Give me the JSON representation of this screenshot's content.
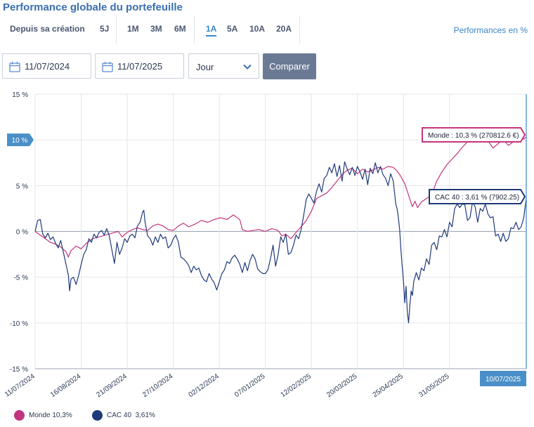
{
  "title": "Performance globale du portefeuille",
  "periods": [
    {
      "label": "Depuis sa création",
      "active": false
    },
    {
      "label": "5J",
      "active": false
    },
    {
      "label": "1M",
      "active": false
    },
    {
      "label": "3M",
      "active": false
    },
    {
      "label": "6M",
      "active": false
    },
    {
      "label": "1A",
      "active": true
    },
    {
      "label": "5A",
      "active": false
    },
    {
      "label": "10A",
      "active": false
    },
    {
      "label": "20A",
      "active": false
    }
  ],
  "perf_mode": "Performances en %",
  "controls": {
    "date_from": "11/07/2024",
    "date_to": "11/07/2025",
    "granularity": "Jour",
    "compare_label": "Comparer"
  },
  "colors": {
    "monde": "#c2357e",
    "cac40": "#1f3a7a",
    "accent": "#3a86c8",
    "button": "#6b7a94"
  },
  "chart_data": {
    "type": "line",
    "x_ticks": [
      "11/07/2024",
      "16/08/2024",
      "21/09/2024",
      "27/10/2024",
      "02/12/2024",
      "07/01/2025",
      "12/02/2025",
      "20/03/2025",
      "25/04/2025",
      "31/05/2025"
    ],
    "y_ticks": [
      "15 %",
      "10 %",
      "5 %",
      "0 %",
      "-5 %",
      "-10 %",
      "-15 %"
    ],
    "ylim": [
      -15,
      15
    ],
    "x_range": [
      "11/07/2024",
      "10/07/2025"
    ],
    "crosshair": {
      "y_label": "10 %",
      "x_label": "10/07/2025"
    },
    "grid": true,
    "series": [
      {
        "name": "Monde",
        "legend_value": "10,3%",
        "tooltip": "Monde : 10,3 % (270812.6 €)",
        "points": [
          [
            0,
            0
          ],
          [
            4,
            -0.4
          ],
          [
            8,
            -0.8
          ],
          [
            12,
            -1.2
          ],
          [
            16,
            -1.4
          ],
          [
            20,
            -1.7
          ],
          [
            24,
            -2.2
          ],
          [
            26,
            -2.8
          ],
          [
            28,
            -2.1
          ],
          [
            32,
            -1.6
          ],
          [
            36,
            -1.9
          ],
          [
            40,
            -1.3
          ],
          [
            45,
            -0.8
          ],
          [
            50,
            -0.6
          ],
          [
            55,
            -0.4
          ],
          [
            60,
            -0.2
          ],
          [
            65,
            0
          ],
          [
            68,
            -0.6
          ],
          [
            72,
            -0.1
          ],
          [
            76,
            0.2
          ],
          [
            80,
            0.4
          ],
          [
            84,
            0.2
          ],
          [
            88,
            0.1
          ],
          [
            92,
            0.6
          ],
          [
            96,
            0.8
          ],
          [
            100,
            0.6
          ],
          [
            104,
            0.2
          ],
          [
            108,
            0.1
          ],
          [
            112,
            0.6
          ],
          [
            116,
            0.9
          ],
          [
            120,
            0.5
          ],
          [
            125,
            0.8
          ],
          [
            130,
            1.2
          ],
          [
            135,
            1.0
          ],
          [
            140,
            1.3
          ],
          [
            145,
            1.5
          ],
          [
            150,
            1.3
          ],
          [
            155,
            1.8
          ],
          [
            160,
            1.3
          ],
          [
            162,
            0.2
          ],
          [
            166,
            0
          ],
          [
            170,
            0.1
          ],
          [
            175,
            0.2
          ],
          [
            180,
            0
          ],
          [
            185,
            0.3
          ],
          [
            190,
            0.1
          ],
          [
            193,
            -0.5
          ],
          [
            196,
            -0.3
          ],
          [
            200,
            -0.8
          ],
          [
            204,
            -0.1
          ],
          [
            208,
            0.5
          ],
          [
            212,
            1.2
          ],
          [
            216,
            2.2
          ],
          [
            220,
            3.6
          ],
          [
            224,
            3.9
          ],
          [
            228,
            4.2
          ],
          [
            232,
            4.8
          ],
          [
            236,
            5.5
          ],
          [
            240,
            6.2
          ],
          [
            244,
            6.7
          ],
          [
            248,
            6.9
          ],
          [
            252,
            6.3
          ],
          [
            256,
            6.8
          ],
          [
            260,
            6.5
          ],
          [
            264,
            6.7
          ],
          [
            268,
            7.0
          ],
          [
            272,
            6.8
          ],
          [
            276,
            7.1
          ],
          [
            280,
            7.0
          ],
          [
            283,
            6.6
          ],
          [
            286,
            6.0
          ],
          [
            289,
            5.2
          ],
          [
            291,
            4.4
          ],
          [
            293,
            3.5
          ],
          [
            295,
            2.7
          ],
          [
            297,
            3.3
          ],
          [
            299,
            2.6
          ],
          [
            302,
            3.2
          ],
          [
            306,
            3.6
          ],
          [
            310,
            4.0
          ],
          [
            314,
            5.5
          ],
          [
            318,
            6.5
          ],
          [
            322,
            7.3
          ],
          [
            326,
            7.9
          ],
          [
            330,
            8.5
          ],
          [
            334,
            9.2
          ],
          [
            338,
            9.8
          ],
          [
            342,
            10.2
          ],
          [
            346,
            10.4
          ],
          [
            350,
            10.6
          ],
          [
            354,
            9.9
          ],
          [
            358,
            9.1
          ],
          [
            362,
            9.6
          ],
          [
            366,
            10.0
          ],
          [
            370,
            9.4
          ],
          [
            374,
            9.8
          ],
          [
            378,
            10.0
          ],
          [
            382,
            10.1
          ],
          [
            384,
            10.3
          ]
        ]
      },
      {
        "name": "CAC 40",
        "legend_value": "3,61%",
        "tooltip": "CAC 40 : 3,61 % (7902.25)",
        "points": [
          [
            0,
            0
          ],
          [
            2,
            1.2
          ],
          [
            4,
            1.3
          ],
          [
            6,
            -0.3
          ],
          [
            8,
            -0.7
          ],
          [
            10,
            -0.2
          ],
          [
            12,
            -0.9
          ],
          [
            14,
            -0.6
          ],
          [
            16,
            -1.3
          ],
          [
            18,
            -1.8
          ],
          [
            20,
            -1.0
          ],
          [
            22,
            -2.2
          ],
          [
            24,
            -3.5
          ],
          [
            26,
            -4.8
          ],
          [
            27,
            -6.5
          ],
          [
            28,
            -5.2
          ],
          [
            30,
            -5.0
          ],
          [
            32,
            -5.8
          ],
          [
            34,
            -4.8
          ],
          [
            36,
            -3.6
          ],
          [
            38,
            -2.5
          ],
          [
            40,
            -2.0
          ],
          [
            42,
            -0.8
          ],
          [
            44,
            -1.2
          ],
          [
            46,
            -0.3
          ],
          [
            48,
            -0.7
          ],
          [
            50,
            -0.1
          ],
          [
            52,
            0.1
          ],
          [
            54,
            -0.4
          ],
          [
            56,
            0.3
          ],
          [
            58,
            -0.5
          ],
          [
            60,
            -2.0
          ],
          [
            62,
            -3.5
          ],
          [
            64,
            -1.2
          ],
          [
            66,
            -2.5
          ],
          [
            68,
            -1.8
          ],
          [
            70,
            -0.8
          ],
          [
            72,
            -1.2
          ],
          [
            74,
            -0.5
          ],
          [
            76,
            -0.3
          ],
          [
            78,
            -0.7
          ],
          [
            80,
            0.6
          ],
          [
            82,
            1.0
          ],
          [
            84,
            2.1
          ],
          [
            85,
            2.3
          ],
          [
            86,
            1.0
          ],
          [
            88,
            -0.5
          ],
          [
            90,
            -0.8
          ],
          [
            92,
            -1.5
          ],
          [
            94,
            -0.6
          ],
          [
            96,
            -1.2
          ],
          [
            98,
            -0.3
          ],
          [
            100,
            -0.8
          ],
          [
            102,
            -0.6
          ],
          [
            104,
            -1.8
          ],
          [
            106,
            -1.5
          ],
          [
            108,
            -0.8
          ],
          [
            110,
            -0.4
          ],
          [
            112,
            -1.2
          ],
          [
            114,
            -2.8
          ],
          [
            116,
            -3.0
          ],
          [
            118,
            -3.3
          ],
          [
            120,
            -3.7
          ],
          [
            122,
            -4.5
          ],
          [
            124,
            -3.8
          ],
          [
            126,
            -4.2
          ],
          [
            128,
            -4.0
          ],
          [
            130,
            -4.8
          ],
          [
            132,
            -5.3
          ],
          [
            134,
            -5.5
          ],
          [
            136,
            -4.6
          ],
          [
            138,
            -5.2
          ],
          [
            140,
            -5.6
          ],
          [
            142,
            -6.4
          ],
          [
            144,
            -5.5
          ],
          [
            146,
            -4.6
          ],
          [
            148,
            -4.2
          ],
          [
            150,
            -3.3
          ],
          [
            152,
            -3.5
          ],
          [
            154,
            -2.9
          ],
          [
            156,
            -2.6
          ],
          [
            158,
            -3.0
          ],
          [
            160,
            -3.6
          ],
          [
            162,
            -4.5
          ],
          [
            164,
            -3.4
          ],
          [
            166,
            -4.3
          ],
          [
            168,
            -3.2
          ],
          [
            170,
            -2.5
          ],
          [
            172,
            -3.0
          ],
          [
            174,
            -4.1
          ],
          [
            176,
            -4.4
          ],
          [
            178,
            -4.6
          ],
          [
            180,
            -4.6
          ],
          [
            182,
            -4.2
          ],
          [
            184,
            -3.0
          ],
          [
            186,
            -1.5
          ],
          [
            188,
            -3.8
          ],
          [
            190,
            -2.5
          ],
          [
            192,
            -0.6
          ],
          [
            194,
            -1.2
          ],
          [
            196,
            -0.3
          ],
          [
            198,
            -2.5
          ],
          [
            200,
            -2.3
          ],
          [
            202,
            -1.5
          ],
          [
            204,
            -0.4
          ],
          [
            206,
            -0.8
          ],
          [
            208,
            0.2
          ],
          [
            210,
            1.8
          ],
          [
            212,
            3.5
          ],
          [
            214,
            4.1
          ],
          [
            216,
            3.6
          ],
          [
            218,
            3.1
          ],
          [
            220,
            4.4
          ],
          [
            222,
            5.2
          ],
          [
            224,
            4.3
          ],
          [
            226,
            5.8
          ],
          [
            228,
            6.1
          ],
          [
            230,
            7.0
          ],
          [
            232,
            6.4
          ],
          [
            234,
            7.4
          ],
          [
            236,
            6.0
          ],
          [
            238,
            7.2
          ],
          [
            240,
            5.5
          ],
          [
            242,
            7.6
          ],
          [
            244,
            6.8
          ],
          [
            246,
            6.2
          ],
          [
            248,
            7.0
          ],
          [
            250,
            6.1
          ],
          [
            252,
            7.1
          ],
          [
            254,
            6.5
          ],
          [
            256,
            5.7
          ],
          [
            258,
            6.8
          ],
          [
            260,
            5.1
          ],
          [
            262,
            6.9
          ],
          [
            264,
            6.3
          ],
          [
            266,
            7.5
          ],
          [
            268,
            6.4
          ],
          [
            270,
            7.1
          ],
          [
            272,
            6.2
          ],
          [
            274,
            5.8
          ],
          [
            276,
            5.0
          ],
          [
            278,
            6.3
          ],
          [
            280,
            5.5
          ],
          [
            282,
            3.0
          ],
          [
            283,
            2.5
          ],
          [
            284,
            1.5
          ],
          [
            285,
            0.2
          ],
          [
            286,
            -2.0
          ],
          [
            287,
            -3.8
          ],
          [
            288,
            -5.5
          ],
          [
            289,
            -7.8
          ],
          [
            290,
            -6.0
          ],
          [
            291,
            -8.8
          ],
          [
            292,
            -10.0
          ],
          [
            293,
            -8.0
          ],
          [
            294,
            -6.5
          ],
          [
            295,
            -7.0
          ],
          [
            296,
            -5.5
          ],
          [
            298,
            -4.5
          ],
          [
            300,
            -5.3
          ],
          [
            302,
            -4.0
          ],
          [
            304,
            -4.3
          ],
          [
            306,
            -3.0
          ],
          [
            308,
            -3.6
          ],
          [
            310,
            -1.5
          ],
          [
            312,
            -1.2
          ],
          [
            314,
            -2.0
          ],
          [
            316,
            -0.5
          ],
          [
            318,
            -0.6
          ],
          [
            320,
            0.2
          ],
          [
            322,
            -0.6
          ],
          [
            324,
            1.0
          ],
          [
            326,
            0.5
          ],
          [
            328,
            2.5
          ],
          [
            330,
            3.0
          ],
          [
            332,
            2.6
          ],
          [
            334,
            3.0
          ],
          [
            336,
            2.9
          ],
          [
            338,
            1.2
          ],
          [
            340,
            1.5
          ],
          [
            342,
            3.2
          ],
          [
            344,
            2.7
          ],
          [
            346,
            1.0
          ],
          [
            348,
            2.5
          ],
          [
            350,
            2.2
          ],
          [
            352,
            3.0
          ],
          [
            354,
            1.9
          ],
          [
            356,
            1.5
          ],
          [
            358,
            1.6
          ],
          [
            360,
            -0.5
          ],
          [
            362,
            -0.3
          ],
          [
            364,
            -1.1
          ],
          [
            366,
            -0.2
          ],
          [
            368,
            -1.1
          ],
          [
            370,
            -0.8
          ],
          [
            372,
            0.4
          ],
          [
            374,
            0.3
          ],
          [
            376,
            1.0
          ],
          [
            378,
            0.2
          ],
          [
            380,
            0.5
          ],
          [
            382,
            1.5
          ],
          [
            384,
            3.6
          ]
        ]
      }
    ]
  }
}
